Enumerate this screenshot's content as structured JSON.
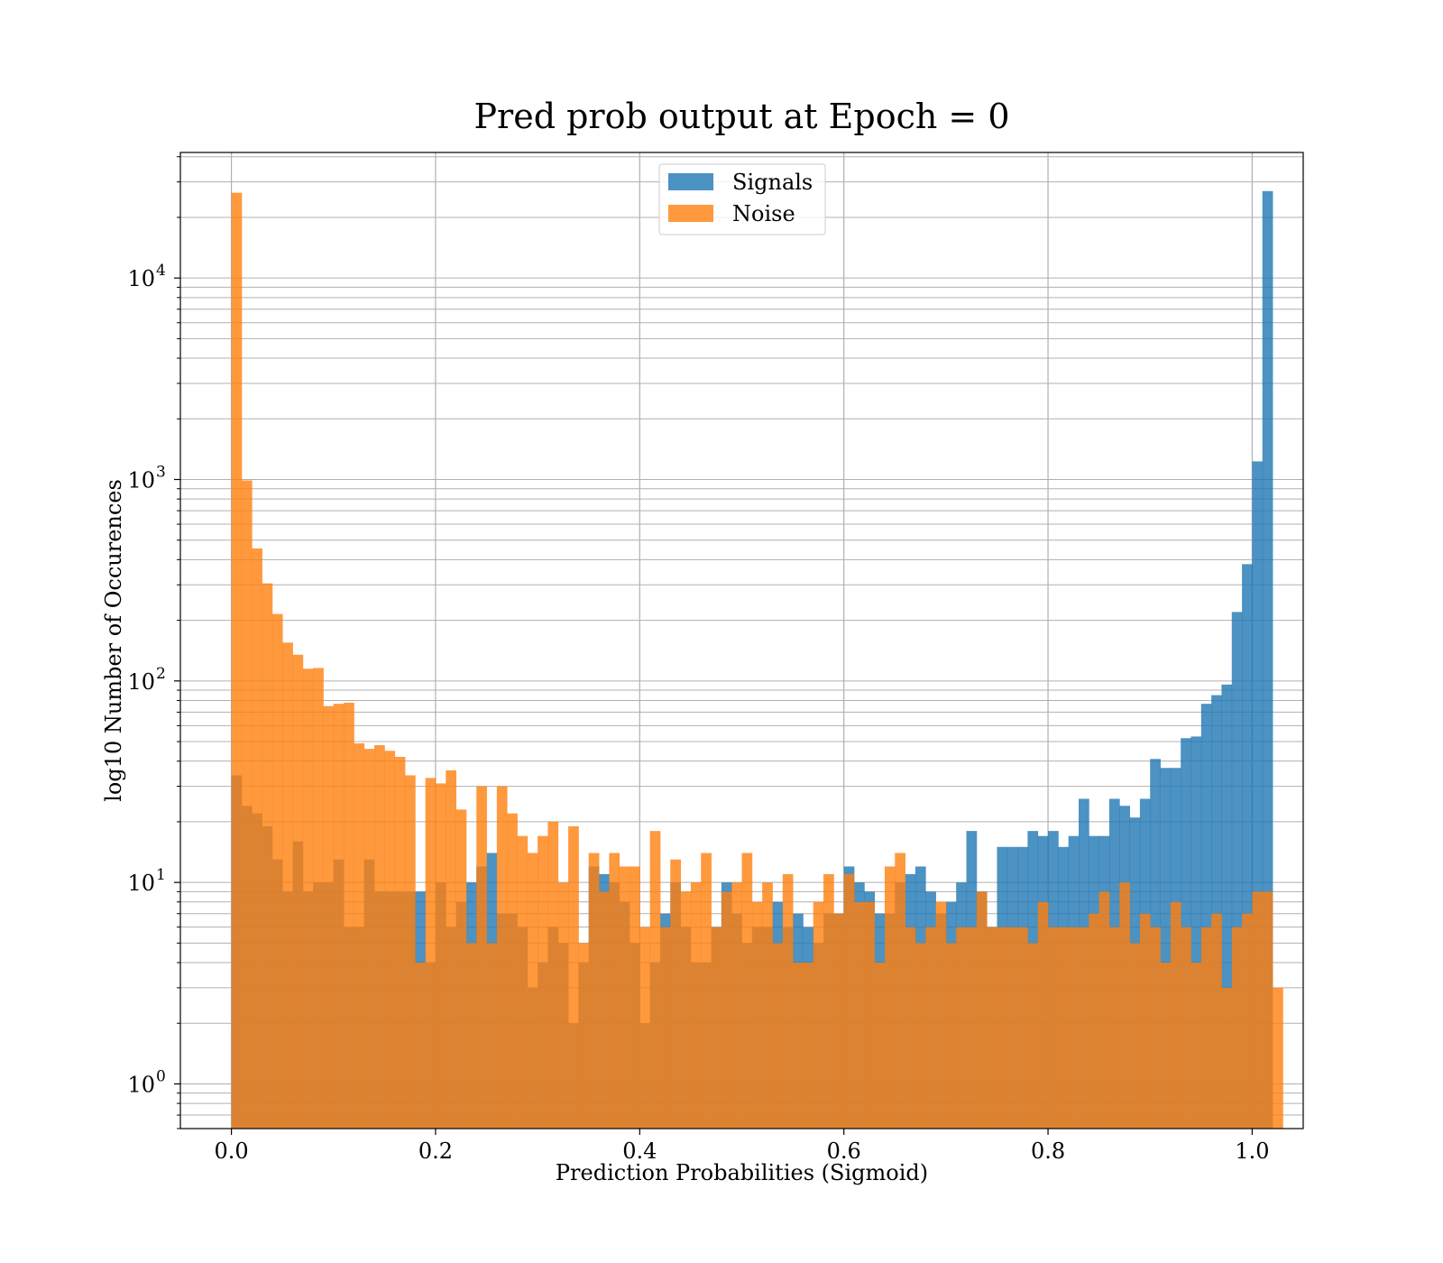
{
  "chart_data": {
    "type": "bar",
    "title": "Pred prob output at Epoch = 0",
    "xlabel": "Prediction Probabilities (Sigmoid)",
    "ylabel": "log10 Number of Occurences",
    "xlim": [
      -0.05,
      1.05
    ],
    "ylim": [
      0.6,
      42000
    ],
    "yscale": "log",
    "grid": true,
    "legend": "upper center",
    "x_ticks": [
      {
        "value": 0.0,
        "label": "0.0"
      },
      {
        "value": 0.2,
        "label": "0.2"
      },
      {
        "value": 0.4,
        "label": "0.4"
      },
      {
        "value": 0.6,
        "label": "0.6"
      },
      {
        "value": 0.8,
        "label": "0.8"
      },
      {
        "value": 1.0,
        "label": "1.0"
      }
    ],
    "y_ticks": [
      {
        "value": 1,
        "base": "10",
        "exp": "0"
      },
      {
        "value": 10,
        "base": "10",
        "exp": "1"
      },
      {
        "value": 100,
        "base": "10",
        "exp": "2"
      },
      {
        "value": 1000,
        "base": "10",
        "exp": "3"
      },
      {
        "value": 10000,
        "base": "10",
        "exp": "4"
      }
    ],
    "bin_start": 0.0,
    "bin_width": 0.01,
    "series": [
      {
        "name": "Signals",
        "color": "#1f77b4",
        "opacity": 0.8,
        "values": [
          34,
          24,
          22,
          19,
          13,
          9,
          16,
          9,
          10,
          10,
          13,
          6,
          6,
          13,
          9,
          9,
          9,
          9,
          9,
          4,
          10,
          6,
          8,
          10,
          12,
          14,
          7,
          7,
          6,
          3,
          4,
          6,
          5,
          2,
          4,
          12,
          11,
          10,
          8,
          5,
          2,
          4,
          7,
          10,
          6,
          4,
          4,
          6,
          10,
          7,
          5,
          6,
          6,
          8,
          6,
          7,
          6,
          5,
          7,
          7,
          12,
          10,
          9,
          7,
          7,
          10,
          11,
          12,
          9,
          7,
          8,
          10,
          18,
          9,
          6,
          15,
          15,
          15,
          18,
          17,
          18,
          15,
          17,
          26,
          17,
          17,
          26,
          24,
          21,
          26,
          41,
          37,
          37,
          52,
          53,
          77,
          85,
          96,
          220,
          380,
          1230,
          27000
        ]
      },
      {
        "name": "Noise",
        "color": "#ff7f0e",
        "opacity": 0.8,
        "values": [
          26500,
          990,
          455,
          305,
          215,
          155,
          135,
          115,
          116,
          75,
          77,
          78,
          49,
          46,
          48,
          45,
          42,
          34,
          4,
          33,
          31,
          36,
          23,
          5,
          30,
          5,
          30,
          22,
          17,
          14,
          17,
          20,
          10,
          19,
          5,
          14,
          9,
          14,
          12,
          12,
          6,
          18,
          6,
          13,
          9,
          10,
          14,
          6,
          9,
          10,
          14,
          8,
          10,
          5,
          11,
          4,
          4,
          8,
          11,
          7,
          11,
          8,
          8,
          4,
          12,
          14,
          6,
          5,
          6,
          8,
          5,
          6,
          6,
          9,
          6,
          6,
          6,
          6,
          5,
          8,
          6,
          6,
          6,
          6,
          7,
          9,
          6,
          10,
          5,
          7,
          6,
          4,
          8,
          6,
          4,
          6,
          7,
          3,
          6,
          7,
          9,
          9,
          3
        ]
      }
    ]
  }
}
